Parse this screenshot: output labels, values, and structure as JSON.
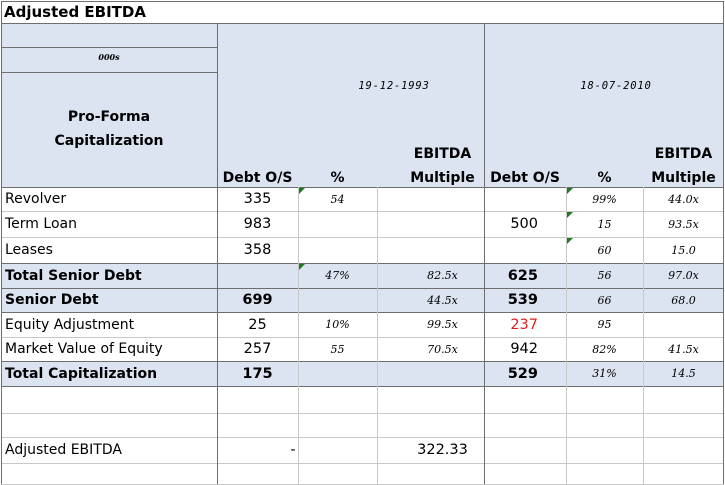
{
  "title": "Adjusted EBITDA",
  "unit_label": "000s",
  "dates": {
    "left": "19-12-1993",
    "right": "18-07-2010"
  },
  "section_label": "Pro-Forma\nCapitalization",
  "headers": {
    "debt": "Debt O/S",
    "pct": "%",
    "ebitda": "EBITDA",
    "multiple": "Multiple"
  },
  "rows": {
    "revolver": {
      "label": "Revolver",
      "d1": "335",
      "p1": "54",
      "m1": "",
      "d2": "",
      "p2": "99%",
      "m2": "44.0x"
    },
    "term_loan": {
      "label": "Term Loan",
      "d1": "983",
      "p1": "",
      "m1": "",
      "d2": "500",
      "p2": "15",
      "m2": "93.5x"
    },
    "leases": {
      "label": "Leases",
      "d1": "358",
      "p1": "",
      "m1": "",
      "d2": "",
      "p2": "60",
      "m2": "15.0"
    },
    "total_senior": {
      "label": "Total Senior Debt",
      "d1": "",
      "p1": "47%",
      "m1": "82.5x",
      "d2": "625",
      "p2": "56",
      "m2": "97.0x"
    },
    "senior": {
      "label": "Senior Debt",
      "d1": "699",
      "p1": "",
      "m1": "44.5x",
      "d2": "539",
      "p2": "66",
      "m2": "68.0"
    },
    "equity_adj": {
      "label": "Equity Adjustment",
      "d1": "25",
      "p1": "10%",
      "m1": "99.5x",
      "d2": "237",
      "p2": "95",
      "m2": ""
    },
    "market_value": {
      "label": "Market Value of Equity",
      "d1": "257",
      "p1": "55",
      "m1": "70.5x",
      "d2": "942",
      "p2": "82%",
      "m2": "41.5x"
    },
    "total_cap": {
      "label": "Total Capitalization",
      "d1": "175",
      "p1": "",
      "m1": "",
      "d2": "529",
      "p2": "31%",
      "m2": "14.5"
    }
  },
  "adjusted_ebitda": {
    "label": "Adjusted EBITDA",
    "dash": "-",
    "value": "322.33"
  },
  "colors": {
    "band": "#dce3f1",
    "grid": "#c8c8c8",
    "border": "#6e6e6e",
    "negative": "#e0201b",
    "marker": "#1d7a1d"
  }
}
